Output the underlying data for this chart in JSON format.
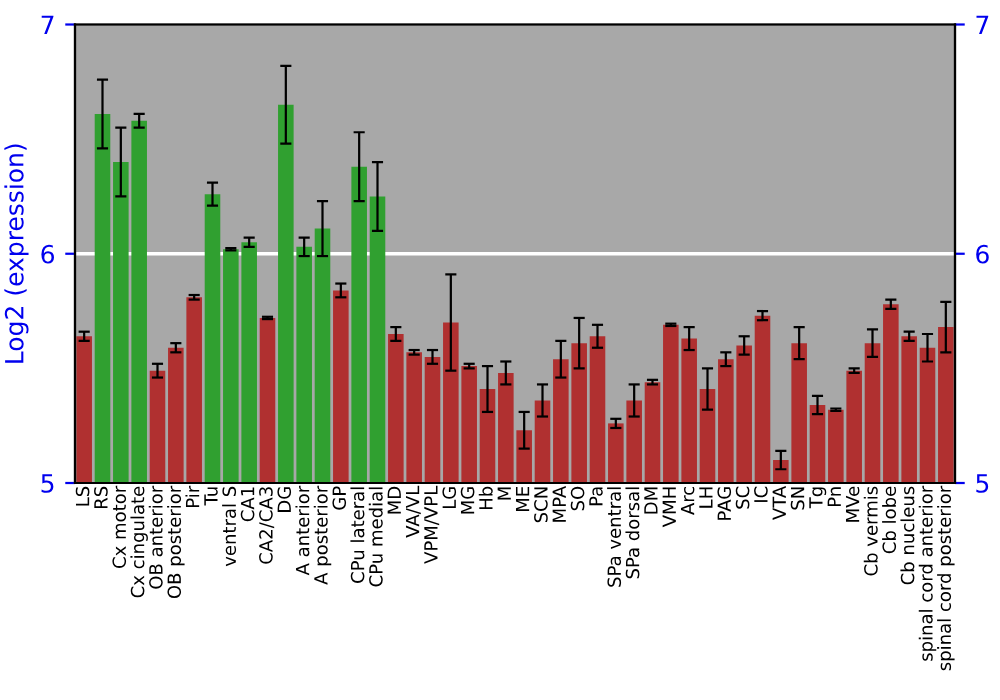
{
  "chart_data": {
    "type": "bar",
    "ylabel": "Log2 (expression)",
    "categories": [
      "LS",
      "RS",
      "Cx motor",
      "Cx cingulate",
      "OB anterior",
      "OB posterior",
      "Pir",
      "Tu",
      "ventral S",
      "CA1",
      "CA2/CA3",
      "DG",
      "A anterior",
      "A posterior",
      "GP",
      "CPu lateral",
      "CPu medial",
      "MD",
      "VA/VL",
      "VPM/VPL",
      "LG",
      "MG",
      "Hb",
      "M",
      "ME",
      "SCN",
      "MPA",
      "SO",
      "Pa",
      "SPa ventral",
      "SPa dorsal",
      "DM",
      "VMH",
      "Arc",
      "LH",
      "PAG",
      "SC",
      "IC",
      "VTA",
      "SN",
      "Tg",
      "Pn",
      "MVe",
      "Cb vermis",
      "Cb lobe",
      "Cb nucleus",
      "spinal cord anterior",
      "spinal cord posterior"
    ],
    "values": [
      5.64,
      6.61,
      6.4,
      6.58,
      5.49,
      5.59,
      5.81,
      6.26,
      6.02,
      6.05,
      5.72,
      6.65,
      6.03,
      6.11,
      5.84,
      6.38,
      6.25,
      5.65,
      5.57,
      5.55,
      5.7,
      5.51,
      5.41,
      5.48,
      5.23,
      5.36,
      5.54,
      5.61,
      5.64,
      5.26,
      5.36,
      5.44,
      5.69,
      5.63,
      5.41,
      5.54,
      5.6,
      5.73,
      5.1,
      5.61,
      5.34,
      5.32,
      5.49,
      5.61,
      5.78,
      5.64,
      5.59,
      5.68
    ],
    "errors": [
      0.02,
      0.15,
      0.15,
      0.03,
      0.03,
      0.02,
      0.01,
      0.05,
      0.005,
      0.02,
      0.005,
      0.17,
      0.04,
      0.12,
      0.03,
      0.15,
      0.15,
      0.03,
      0.01,
      0.03,
      0.21,
      0.01,
      0.1,
      0.05,
      0.08,
      0.07,
      0.08,
      0.11,
      0.05,
      0.02,
      0.07,
      0.01,
      0.005,
      0.05,
      0.09,
      0.03,
      0.04,
      0.02,
      0.04,
      0.07,
      0.04,
      0.005,
      0.01,
      0.06,
      0.02,
      0.02,
      0.06,
      0.11
    ],
    "colors": [
      "#b03030",
      "#30a030",
      "#30a030",
      "#30a030",
      "#b03030",
      "#b03030",
      "#b03030",
      "#30a030",
      "#30a030",
      "#30a030",
      "#b03030",
      "#30a030",
      "#30a030",
      "#30a030",
      "#b03030",
      "#30a030",
      "#30a030",
      "#b03030",
      "#b03030",
      "#b03030",
      "#b03030",
      "#b03030",
      "#b03030",
      "#b03030",
      "#b03030",
      "#b03030",
      "#b03030",
      "#b03030",
      "#b03030",
      "#b03030",
      "#b03030",
      "#b03030",
      "#b03030",
      "#b03030",
      "#b03030",
      "#b03030",
      "#b03030",
      "#b03030",
      "#b03030",
      "#b03030",
      "#b03030",
      "#b03030",
      "#b03030",
      "#b03030",
      "#b03030",
      "#b03030",
      "#b03030",
      "#b03030"
    ],
    "ylim": [
      5,
      7
    ],
    "yticks": [
      5,
      6,
      7
    ],
    "y2lim": [
      5,
      7
    ],
    "y2ticks": [
      5,
      6,
      7
    ],
    "ref_lines": [
      {
        "axis": "y",
        "value": 6,
        "color": "#ffffff"
      }
    ]
  }
}
